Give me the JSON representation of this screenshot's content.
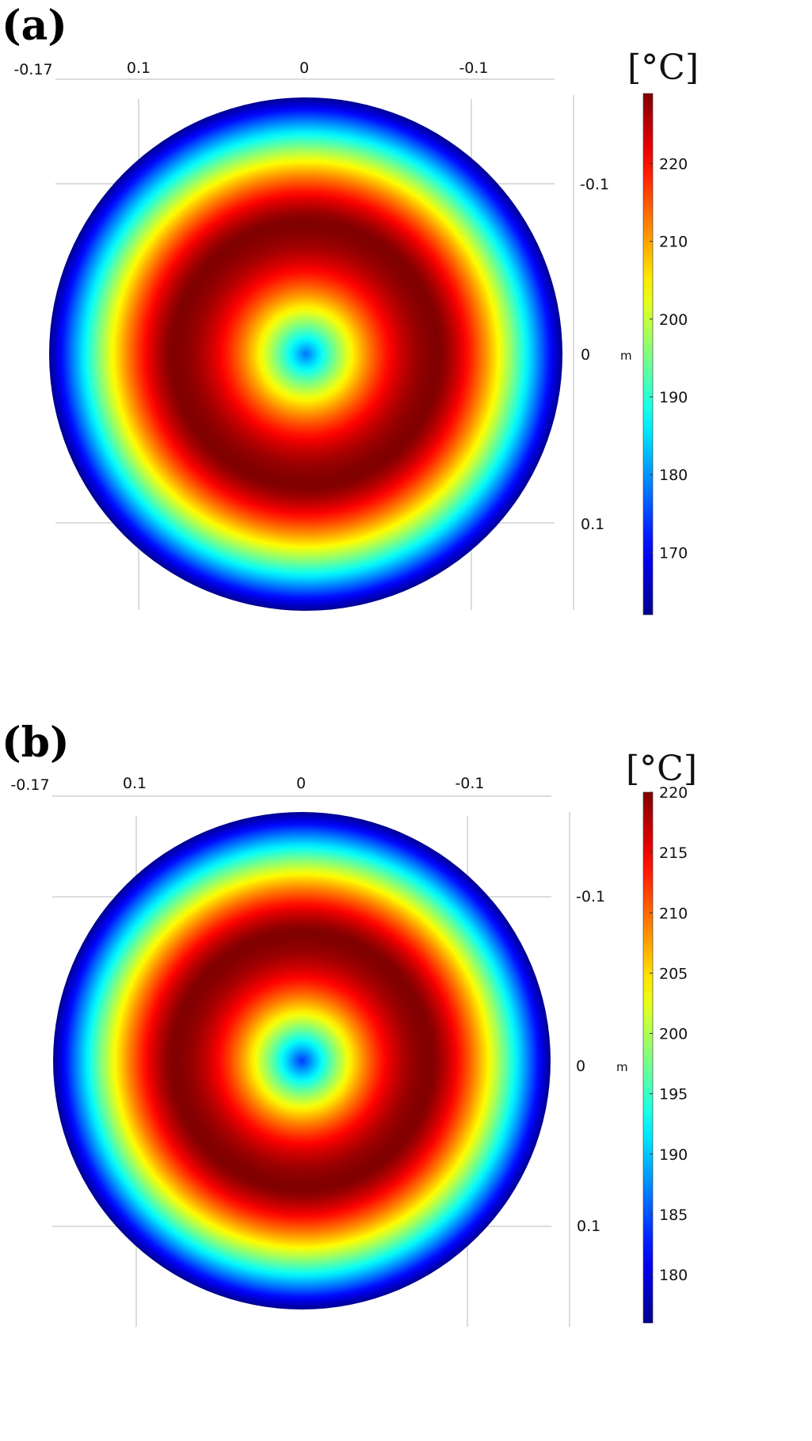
{
  "chart_data": [
    {
      "panel_label": "(a)",
      "type": "heatmap",
      "colormap": "jet",
      "unit": "[°C]",
      "x_ticks": [
        "-0.17",
        "0.1",
        "0",
        "-0.1"
      ],
      "y_ticks": [
        "-0.1",
        "0",
        "0.1"
      ],
      "y_axis_unit": "m",
      "colorbar": {
        "ticks": [
          220,
          210,
          200,
          190,
          180,
          170
        ],
        "range": [
          162,
          229
        ]
      },
      "field": {
        "center_value": 178,
        "peak_value": 229,
        "edge_value": 162
      }
    },
    {
      "panel_label": "(b)",
      "type": "heatmap",
      "colormap": "jet",
      "unit": "[°C]",
      "x_ticks": [
        "-0.17",
        "0.1",
        "0",
        "-0.1"
      ],
      "y_ticks": [
        "-0.1",
        "0",
        "0.1"
      ],
      "y_axis_unit": "m",
      "colorbar": {
        "ticks": [
          220,
          215,
          210,
          205,
          200,
          195,
          190,
          185,
          180
        ],
        "range": [
          176,
          220
        ]
      },
      "field": {
        "center_value": 184,
        "peak_value": 220,
        "edge_value": 176
      }
    }
  ],
  "colors": {
    "jet": [
      "#00008f",
      "#0000ff",
      "#0080ff",
      "#00ffff",
      "#80ff80",
      "#ffff00",
      "#ff8000",
      "#ff0000",
      "#800000"
    ]
  }
}
